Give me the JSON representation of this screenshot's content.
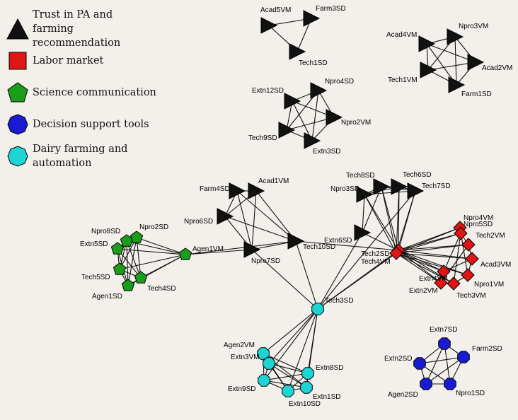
{
  "legend": [
    {
      "id": "trust",
      "label": "Trust in PA and farming recommendation",
      "shape": "triangle",
      "color": "#111111"
    },
    {
      "id": "labor",
      "label": "Labor market",
      "shape": "square",
      "color": "#e01515"
    },
    {
      "id": "science",
      "label": "Science communication",
      "shape": "pentagon",
      "color": "#1a9e1a"
    },
    {
      "id": "decision",
      "label": "Decision support tools",
      "shape": "circle",
      "color": "#1a1ad0"
    },
    {
      "id": "dairy",
      "label": "Dairy farming and automation",
      "shape": "octagon",
      "color": "#1fd4d4"
    }
  ],
  "nodes": [
    {
      "id": "Acad5VM",
      "group": "trust"
    },
    {
      "id": "Farm3SD",
      "group": "trust"
    },
    {
      "id": "Tech1SD",
      "group": "trust"
    },
    {
      "id": "Acad4VM",
      "group": "trust"
    },
    {
      "id": "Npro3VM",
      "group": "trust"
    },
    {
      "id": "Acad2VM",
      "group": "trust"
    },
    {
      "id": "Tech1VM",
      "group": "trust"
    },
    {
      "id": "Farm1SD",
      "group": "trust"
    },
    {
      "id": "Extn12SD",
      "group": "trust"
    },
    {
      "id": "Npro4SD",
      "group": "trust"
    },
    {
      "id": "Npro2VM",
      "group": "trust"
    },
    {
      "id": "Tech9SD",
      "group": "trust"
    },
    {
      "id": "Extn3SD",
      "group": "trust"
    },
    {
      "id": "Farm4SD",
      "group": "trust"
    },
    {
      "id": "Acad1VM",
      "group": "trust"
    },
    {
      "id": "Npro6SD",
      "group": "trust"
    },
    {
      "id": "Npro7SD",
      "group": "trust"
    },
    {
      "id": "Tech10SD",
      "group": "trust"
    },
    {
      "id": "Extn6SD",
      "group": "trust"
    },
    {
      "id": "Tech8SD",
      "group": "trust"
    },
    {
      "id": "Tech6SD",
      "group": "trust"
    },
    {
      "id": "Npro3SD",
      "group": "trust"
    },
    {
      "id": "Tech7SD",
      "group": "trust"
    },
    {
      "id": "Tech2SD",
      "group": "labor"
    },
    {
      "id": "Tech4VM",
      "group": "labor"
    },
    {
      "id": "Npro4VM",
      "group": "labor"
    },
    {
      "id": "Npro5SD",
      "group": "labor"
    },
    {
      "id": "Tech2VM",
      "group": "labor"
    },
    {
      "id": "Acad3VM",
      "group": "labor"
    },
    {
      "id": "Npro1VM",
      "group": "labor"
    },
    {
      "id": "Tech3VM",
      "group": "labor"
    },
    {
      "id": "Extn2VM",
      "group": "labor"
    },
    {
      "id": "Extn4VM",
      "group": "labor"
    },
    {
      "id": "Agen1VM",
      "group": "science"
    },
    {
      "id": "Npro8SD",
      "group": "science"
    },
    {
      "id": "Npro2SD",
      "group": "science"
    },
    {
      "id": "Extn5SD",
      "group": "science"
    },
    {
      "id": "Tech5SD",
      "group": "science"
    },
    {
      "id": "Tech4SD",
      "group": "science"
    },
    {
      "id": "Agen1SD",
      "group": "science"
    },
    {
      "id": "Tech3SD",
      "group": "dairy"
    },
    {
      "id": "Agen2VM",
      "group": "dairy"
    },
    {
      "id": "Extn3VM",
      "group": "dairy"
    },
    {
      "id": "Extn8SD",
      "group": "dairy"
    },
    {
      "id": "Extn9SD",
      "group": "dairy"
    },
    {
      "id": "Extn1SD",
      "group": "dairy"
    },
    {
      "id": "Extn10SD",
      "group": "dairy"
    },
    {
      "id": "Extn7SD",
      "group": "decision"
    },
    {
      "id": "Farm2SD",
      "group": "decision"
    },
    {
      "id": "Extn2SD",
      "group": "decision"
    },
    {
      "id": "Agen2SD",
      "group": "decision"
    },
    {
      "id": "Npro1SD",
      "group": "decision"
    }
  ],
  "edges": [
    [
      "Acad5VM",
      "Farm3SD"
    ],
    [
      "Acad5VM",
      "Tech1SD"
    ],
    [
      "Farm3SD",
      "Tech1SD"
    ],
    [
      "Acad4VM",
      "Npro3VM"
    ],
    [
      "Acad4VM",
      "Acad2VM"
    ],
    [
      "Acad4VM",
      "Tech1VM"
    ],
    [
      "Acad4VM",
      "Farm1SD"
    ],
    [
      "Npro3VM",
      "Acad2VM"
    ],
    [
      "Npro3VM",
      "Tech1VM"
    ],
    [
      "Npro3VM",
      "Farm1SD"
    ],
    [
      "Acad2VM",
      "Tech1VM"
    ],
    [
      "Acad2VM",
      "Farm1SD"
    ],
    [
      "Tech1VM",
      "Farm1SD"
    ],
    [
      "Extn12SD",
      "Npro4SD"
    ],
    [
      "Extn12SD",
      "Npro2VM"
    ],
    [
      "Extn12SD",
      "Tech9SD"
    ],
    [
      "Extn12SD",
      "Extn3SD"
    ],
    [
      "Npro4SD",
      "Npro2VM"
    ],
    [
      "Npro4SD",
      "Tech9SD"
    ],
    [
      "Npro4SD",
      "Extn3SD"
    ],
    [
      "Npro2VM",
      "Tech9SD"
    ],
    [
      "Npro2VM",
      "Extn3SD"
    ],
    [
      "Tech9SD",
      "Extn3SD"
    ],
    [
      "Farm4SD",
      "Acad1VM"
    ],
    [
      "Farm4SD",
      "Npro6SD"
    ],
    [
      "Farm4SD",
      "Npro7SD"
    ],
    [
      "Farm4SD",
      "Tech10SD"
    ],
    [
      "Acad1VM",
      "Npro6SD"
    ],
    [
      "Acad1VM",
      "Npro7SD"
    ],
    [
      "Acad1VM",
      "Tech10SD"
    ],
    [
      "Npro6SD",
      "Npro7SD"
    ],
    [
      "Npro6SD",
      "Tech10SD"
    ],
    [
      "Npro7SD",
      "Tech10SD"
    ],
    [
      "Npro7SD",
      "Agen1VM"
    ],
    [
      "Tech10SD",
      "Agen1VM"
    ],
    [
      "Tech10SD",
      "Tech2SD"
    ],
    [
      "Tech10SD",
      "Tech3SD"
    ],
    [
      "Npro7SD",
      "Tech3SD"
    ],
    [
      "Extn6SD",
      "Tech2SD"
    ],
    [
      "Extn6SD",
      "Tech3SD"
    ],
    [
      "Extn6SD",
      "Npro3SD"
    ],
    [
      "Extn6SD",
      "Tech8SD"
    ],
    [
      "Tech8SD",
      "Tech6SD"
    ],
    [
      "Tech8SD",
      "Npro3SD"
    ],
    [
      "Tech8SD",
      "Tech7SD"
    ],
    [
      "Tech6SD",
      "Npro3SD"
    ],
    [
      "Tech6SD",
      "Tech7SD"
    ],
    [
      "Npro3SD",
      "Tech7SD"
    ],
    [
      "Tech8SD",
      "Tech2SD"
    ],
    [
      "Tech6SD",
      "Tech2SD"
    ],
    [
      "Npro3SD",
      "Tech2SD"
    ],
    [
      "Tech7SD",
      "Tech2SD"
    ],
    [
      "Tech8SD",
      "Tech4VM"
    ],
    [
      "Tech6SD",
      "Tech4VM"
    ],
    [
      "Npro3SD",
      "Tech4VM"
    ],
    [
      "Tech7SD",
      "Tech4VM"
    ],
    [
      "Tech2SD",
      "Tech4VM"
    ],
    [
      "Tech2SD",
      "Npro4VM"
    ],
    [
      "Tech2SD",
      "Npro5SD"
    ],
    [
      "Tech2SD",
      "Tech2VM"
    ],
    [
      "Tech2SD",
      "Acad3VM"
    ],
    [
      "Tech2SD",
      "Npro1VM"
    ],
    [
      "Tech2SD",
      "Tech3VM"
    ],
    [
      "Tech2SD",
      "Extn2VM"
    ],
    [
      "Tech2SD",
      "Extn4VM"
    ],
    [
      "Tech4VM",
      "Npro4VM"
    ],
    [
      "Tech4VM",
      "Npro5SD"
    ],
    [
      "Tech4VM",
      "Tech2VM"
    ],
    [
      "Tech4VM",
      "Acad3VM"
    ],
    [
      "Tech4VM",
      "Npro1VM"
    ],
    [
      "Tech4VM",
      "Tech3VM"
    ],
    [
      "Tech4VM",
      "Extn2VM"
    ],
    [
      "Tech4VM",
      "Extn4VM"
    ],
    [
      "Npro4VM",
      "Npro5SD"
    ],
    [
      "Npro5SD",
      "Tech2VM"
    ],
    [
      "Tech2VM",
      "Acad3VM"
    ],
    [
      "Acad3VM",
      "Npro1VM"
    ],
    [
      "Npro1VM",
      "Tech3VM"
    ],
    [
      "Tech3VM",
      "Extn2VM"
    ],
    [
      "Extn2VM",
      "Extn4VM"
    ],
    [
      "Extn4VM",
      "Npro5SD"
    ],
    [
      "Npro5SD",
      "Tech3VM"
    ],
    [
      "Extn4VM",
      "Acad3VM"
    ],
    [
      "Extn2VM",
      "Tech2VM"
    ],
    [
      "Npro4VM",
      "Npro1VM"
    ],
    [
      "Tech2SD",
      "Tech3SD"
    ],
    [
      "Tech4VM",
      "Tech3SD"
    ],
    [
      "Tech7SD",
      "Tech3SD"
    ],
    [
      "Agen1VM",
      "Npro8SD"
    ],
    [
      "Agen1VM",
      "Npro2SD"
    ],
    [
      "Agen1VM",
      "Extn5SD"
    ],
    [
      "Agen1VM",
      "Tech5SD"
    ],
    [
      "Agen1VM",
      "Tech4SD"
    ],
    [
      "Agen1VM",
      "Agen1SD"
    ],
    [
      "Npro8SD",
      "Npro2SD"
    ],
    [
      "Npro8SD",
      "Extn5SD"
    ],
    [
      "Npro8SD",
      "Tech5SD"
    ],
    [
      "Npro8SD",
      "Tech4SD"
    ],
    [
      "Npro8SD",
      "Agen1SD"
    ],
    [
      "Npro2SD",
      "Extn5SD"
    ],
    [
      "Npro2SD",
      "Tech5SD"
    ],
    [
      "Npro2SD",
      "Tech4SD"
    ],
    [
      "Npro2SD",
      "Agen1SD"
    ],
    [
      "Extn5SD",
      "Tech5SD"
    ],
    [
      "Extn5SD",
      "Tech4SD"
    ],
    [
      "Extn5SD",
      "Agen1SD"
    ],
    [
      "Tech5SD",
      "Tech4SD"
    ],
    [
      "Tech5SD",
      "Agen1SD"
    ],
    [
      "Tech4SD",
      "Agen1SD"
    ],
    [
      "Tech3SD",
      "Agen2VM"
    ],
    [
      "Tech3SD",
      "Extn3VM"
    ],
    [
      "Tech3SD",
      "Extn8SD"
    ],
    [
      "Tech3SD",
      "Extn9SD"
    ],
    [
      "Tech3SD",
      "Extn1SD"
    ],
    [
      "Tech3SD",
      "Extn10SD"
    ],
    [
      "Agen2VM",
      "Extn3VM"
    ],
    [
      "Agen2VM",
      "Extn8SD"
    ],
    [
      "Agen2VM",
      "Extn9SD"
    ],
    [
      "Agen2VM",
      "Extn1SD"
    ],
    [
      "Agen2VM",
      "Extn10SD"
    ],
    [
      "Extn3VM",
      "Extn8SD"
    ],
    [
      "Extn3VM",
      "Extn9SD"
    ],
    [
      "Extn3VM",
      "Extn1SD"
    ],
    [
      "Extn3VM",
      "Extn10SD"
    ],
    [
      "Extn8SD",
      "Extn9SD"
    ],
    [
      "Extn8SD",
      "Extn1SD"
    ],
    [
      "Extn8SD",
      "Extn10SD"
    ],
    [
      "Extn9SD",
      "Extn1SD"
    ],
    [
      "Extn9SD",
      "Extn10SD"
    ],
    [
      "Extn1SD",
      "Extn10SD"
    ],
    [
      "Extn7SD",
      "Farm2SD"
    ],
    [
      "Extn7SD",
      "Extn2SD"
    ],
    [
      "Extn7SD",
      "Agen2SD"
    ],
    [
      "Extn7SD",
      "Npro1SD"
    ],
    [
      "Farm2SD",
      "Extn2SD"
    ],
    [
      "Farm2SD",
      "Agen2SD"
    ],
    [
      "Farm2SD",
      "Npro1SD"
    ],
    [
      "Extn2SD",
      "Agen2SD"
    ],
    [
      "Extn2SD",
      "Npro1SD"
    ],
    [
      "Agen2SD",
      "Npro1SD"
    ]
  ]
}
